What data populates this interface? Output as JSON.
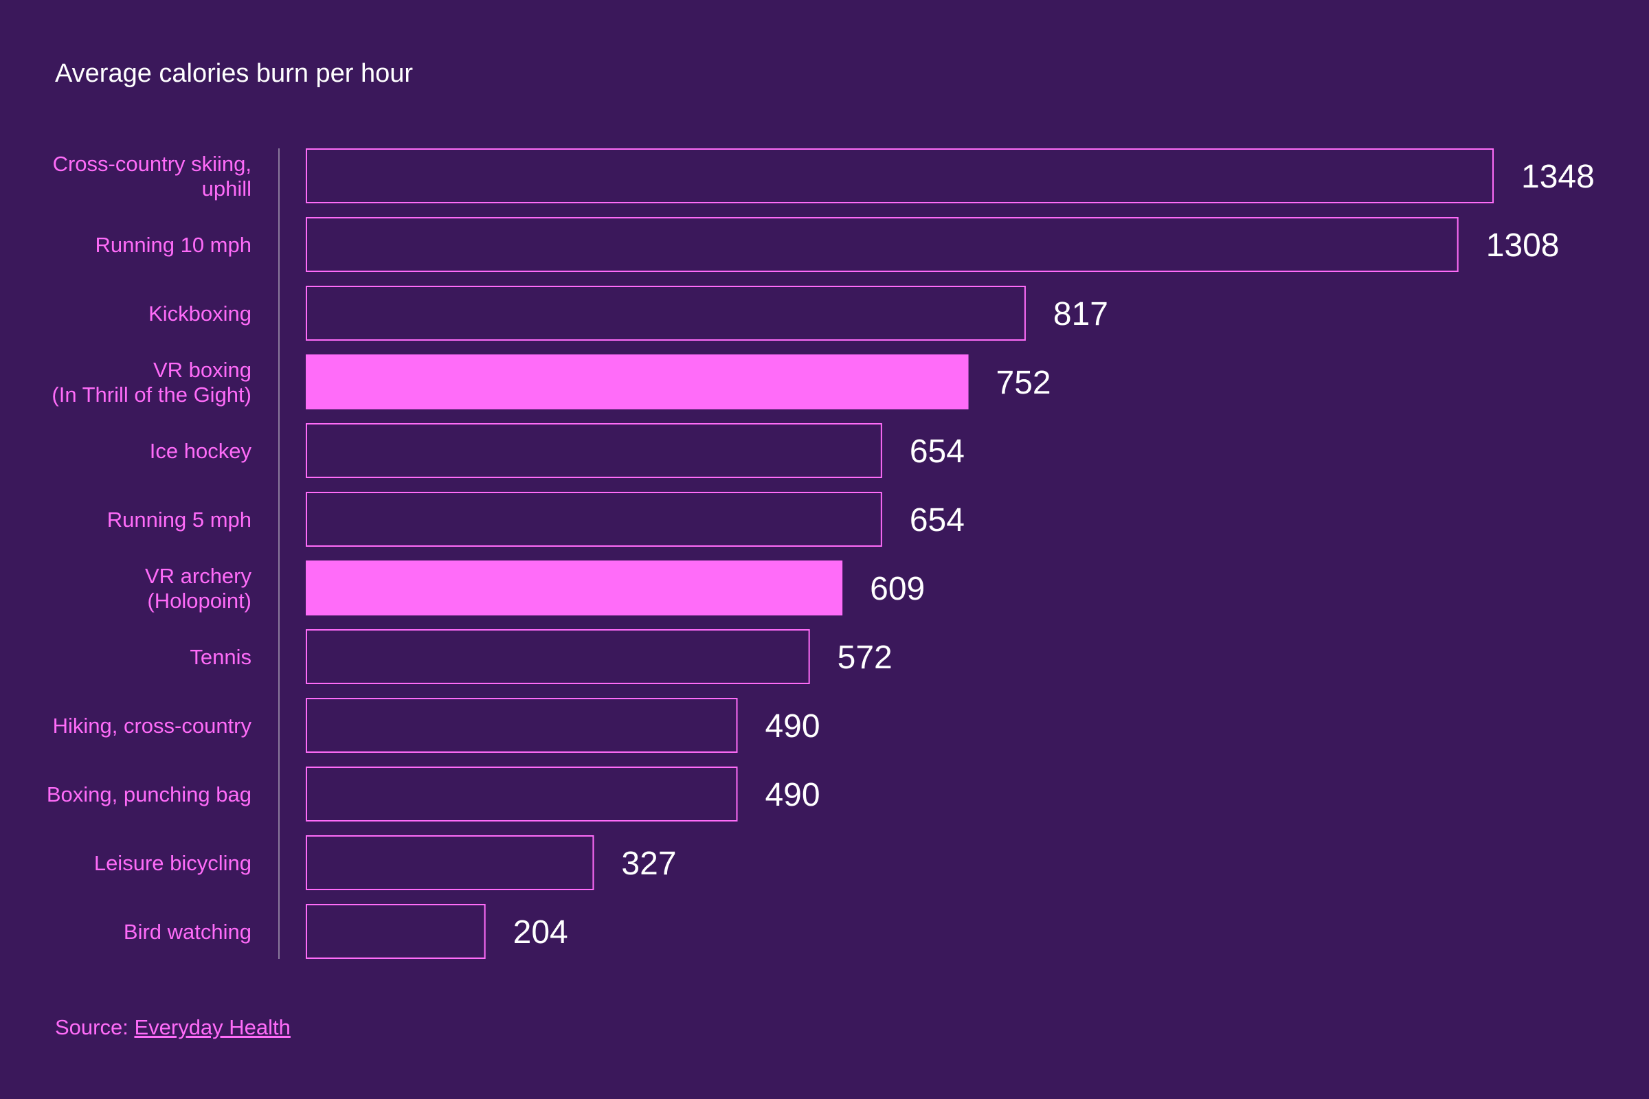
{
  "colors": {
    "background": "#3b185b",
    "accent": "#ff6cf9",
    "title": "#ffffff",
    "value_label": "#ffffff",
    "axis_line": "#8a7a9c"
  },
  "chart_data": {
    "type": "bar",
    "orientation": "horizontal",
    "title": "Average calories burn per hour",
    "xlabel": "",
    "ylabel": "",
    "xlim": [
      0,
      1348
    ],
    "grid": false,
    "categories": [
      [
        "Cross-country skiing,",
        "uphill"
      ],
      [
        "Running 10 mph"
      ],
      [
        "Kickboxing"
      ],
      [
        "VR boxing",
        "(In Thrill of the Gight)"
      ],
      [
        "Ice hockey"
      ],
      [
        "Running 5 mph"
      ],
      [
        "VR archery",
        "(Holopoint)"
      ],
      [
        "Tennis"
      ],
      [
        "Hiking, cross-country"
      ],
      [
        "Boxing, punching bag"
      ],
      [
        "Leisure bicycling"
      ],
      [
        "Bird watching"
      ]
    ],
    "values": [
      1348,
      1308,
      817,
      752,
      654,
      654,
      609,
      572,
      490,
      490,
      327,
      204
    ],
    "highlighted": [
      false,
      false,
      false,
      true,
      false,
      false,
      true,
      false,
      false,
      false,
      false,
      false
    ]
  },
  "source": {
    "prefix": "Source: ",
    "link_text": "Everyday Health"
  }
}
